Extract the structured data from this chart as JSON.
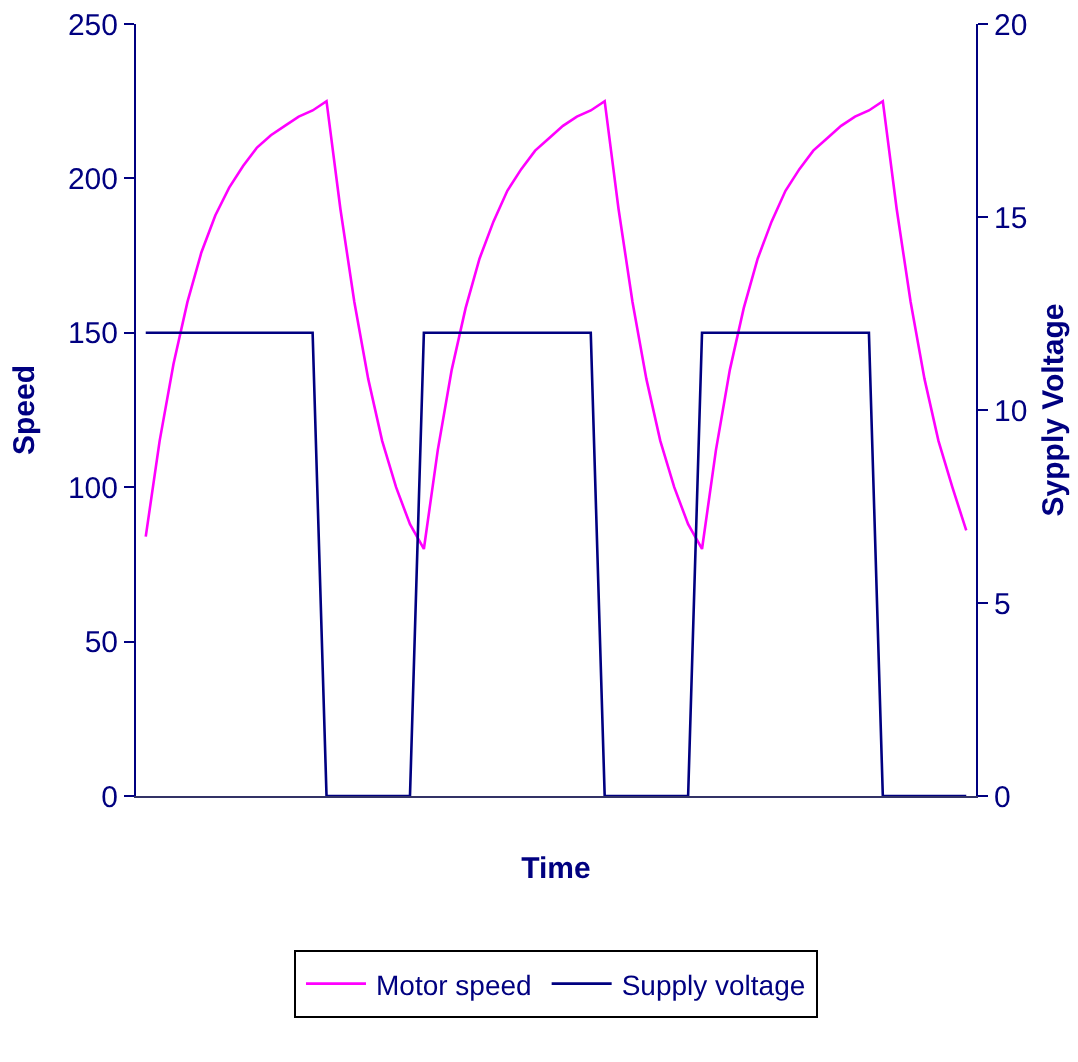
{
  "chart_data": {
    "type": "line",
    "xlabel": "Time",
    "ylabel": "Speed",
    "y2label": "Sypply Voltage",
    "categories": [
      null,
      null,
      null,
      null,
      null,
      null,
      null,
      null,
      null,
      null,
      null,
      null,
      null,
      null,
      null,
      null,
      null,
      null,
      null,
      null,
      null,
      null,
      null,
      null,
      null,
      null,
      null,
      null,
      null,
      null,
      null,
      null,
      null,
      null,
      null,
      null,
      null,
      null,
      null,
      null,
      null,
      null,
      null,
      null,
      null,
      null,
      null,
      null,
      null,
      null,
      null,
      null,
      null,
      null,
      null,
      null,
      null,
      null,
      null,
      null
    ],
    "series": [
      {
        "name": "Motor speed",
        "color": "#ff00ff",
        "values": [
          84,
          115,
          140,
          160,
          176,
          188,
          197,
          204,
          210,
          214,
          217,
          220,
          222,
          225,
          190,
          160,
          135,
          115,
          100,
          88,
          80,
          112,
          138,
          158,
          174,
          186,
          196,
          203,
          209,
          213,
          217,
          220,
          222,
          225,
          190,
          160,
          135,
          115,
          100,
          88,
          80,
          112,
          138,
          158,
          174,
          186,
          196,
          203,
          209,
          213,
          217,
          220,
          222,
          225,
          190,
          160,
          135,
          115,
          100,
          86
        ]
      },
      {
        "name": "Supply voltage",
        "color": "#000080",
        "axis": "y2",
        "values": [
          12,
          12,
          12,
          12,
          12,
          12,
          12,
          12,
          12,
          12,
          12,
          12,
          12,
          0,
          0,
          0,
          0,
          0,
          0,
          0,
          12,
          12,
          12,
          12,
          12,
          12,
          12,
          12,
          12,
          12,
          12,
          12,
          12,
          0,
          0,
          0,
          0,
          0,
          0,
          0,
          12,
          12,
          12,
          12,
          12,
          12,
          12,
          12,
          12,
          12,
          12,
          12,
          12,
          0,
          0,
          0,
          0,
          0,
          0,
          0
        ]
      }
    ],
    "ylim": [
      0,
      250
    ],
    "yticks": [
      0,
      50,
      100,
      150,
      200,
      250
    ],
    "y2lim": [
      0,
      20
    ],
    "y2ticks": [
      0,
      5,
      10,
      15,
      20
    ],
    "grid": false,
    "legend": "bottom",
    "marker": "none",
    "line_style": "solid"
  }
}
